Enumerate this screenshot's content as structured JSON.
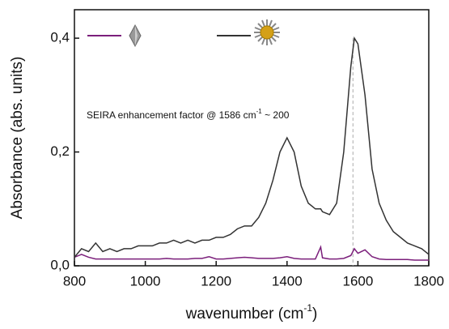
{
  "chart_data": {
    "type": "line",
    "annotation": {
      "text": "SEIRA enhancement factor @ 1586 cm",
      "sup": "-1",
      "tail": " ~ 200"
    },
    "reference_line": {
      "x": 1586
    },
    "x_label": {
      "text": "wavenumber (cm",
      "sup": "-1",
      "tail": ")"
    },
    "y_label": "Absorbance (abs. units)",
    "x": [
      800,
      820,
      840,
      860,
      880,
      900,
      920,
      940,
      960,
      980,
      1000,
      1020,
      1040,
      1060,
      1080,
      1100,
      1120,
      1140,
      1160,
      1180,
      1200,
      1220,
      1240,
      1260,
      1280,
      1300,
      1320,
      1340,
      1360,
      1380,
      1400,
      1420,
      1440,
      1460,
      1480,
      1495,
      1500,
      1520,
      1540,
      1560,
      1580,
      1590,
      1600,
      1620,
      1640,
      1660,
      1680,
      1700,
      1720,
      1740,
      1760,
      1780,
      1800
    ],
    "series": [
      {
        "color": "#7b1f7b",
        "values": [
          0.015,
          0.02,
          0.015,
          0.012,
          0.012,
          0.012,
          0.012,
          0.012,
          0.012,
          0.012,
          0.012,
          0.012,
          0.012,
          0.013,
          0.012,
          0.012,
          0.012,
          0.013,
          0.013,
          0.016,
          0.012,
          0.012,
          0.013,
          0.014,
          0.015,
          0.014,
          0.013,
          0.013,
          0.013,
          0.014,
          0.016,
          0.013,
          0.012,
          0.012,
          0.012,
          0.033,
          0.014,
          0.012,
          0.012,
          0.013,
          0.018,
          0.03,
          0.022,
          0.028,
          0.016,
          0.012,
          0.011,
          0.011,
          0.011,
          0.011,
          0.01,
          0.01,
          0.01
        ]
      },
      {
        "color": "#333333",
        "values": [
          0.015,
          0.03,
          0.025,
          0.04,
          0.025,
          0.03,
          0.025,
          0.03,
          0.03,
          0.035,
          0.035,
          0.035,
          0.04,
          0.04,
          0.045,
          0.04,
          0.045,
          0.04,
          0.045,
          0.045,
          0.05,
          0.05,
          0.055,
          0.065,
          0.07,
          0.07,
          0.085,
          0.11,
          0.15,
          0.2,
          0.225,
          0.2,
          0.14,
          0.11,
          0.1,
          0.1,
          0.095,
          0.09,
          0.11,
          0.2,
          0.35,
          0.4,
          0.39,
          0.3,
          0.17,
          0.11,
          0.08,
          0.06,
          0.05,
          0.04,
          0.035,
          0.03,
          0.02
        ]
      }
    ],
    "xlim": [
      800,
      1800
    ],
    "ylim": [
      0,
      0.45
    ],
    "xticks": [
      800,
      1000,
      1200,
      1400,
      1600,
      1800
    ],
    "yticks": [
      {
        "value": 0,
        "label": "0,0"
      },
      {
        "value": 0.2,
        "label": "0,2"
      },
      {
        "value": 0.4,
        "label": "0,4"
      }
    ]
  }
}
